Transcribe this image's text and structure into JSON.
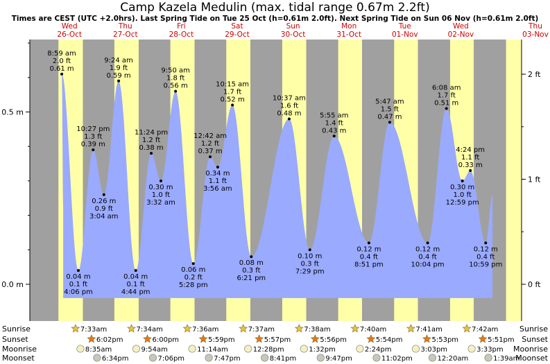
{
  "title": "Camp Kazela Medulin (max. tidal range 0.67m 2.2ft)",
  "subtitle": "Times are CEST (UTC +2.0hrs). Last Spring Tide on Tue 25 Oct (h=0.61m 2.0ft). Next Spring Tide on Sun 06 Nov (h=0.61m 2.0ft)",
  "colors": {
    "day": "#ffffa8",
    "night": "#a0a0a0",
    "tide": "#9aaaff",
    "day_label": "#cc0000"
  },
  "chart_data": {
    "type": "area",
    "title": "Camp Kazela Medulin (max. tidal range 0.67m 2.2ft)",
    "y_left_ticks": [
      {
        "value": 0.0,
        "label": "0.0 m"
      },
      {
        "value": 0.5,
        "label": "0.5 m"
      }
    ],
    "y_right_ticks": [
      {
        "value": 0.0,
        "label": "0 ft"
      },
      {
        "value": 0.3048,
        "label": "1 ft"
      },
      {
        "value": 0.6096,
        "label": "2 ft"
      }
    ],
    "ylim": [
      -0.06,
      0.75
    ],
    "days": [
      {
        "dow": "Wed",
        "date": "26-Oct",
        "sunrise": "7:33am",
        "sunset": "6:02pm",
        "moonrise": "8:35am",
        "moonset": "6:34pm"
      },
      {
        "dow": "Thu",
        "date": "27-Oct",
        "sunrise": "7:34am",
        "sunset": "6:00pm",
        "moonrise": "9:54am",
        "moonset": "7:06pm"
      },
      {
        "dow": "Fri",
        "date": "28-Oct",
        "sunrise": "7:36am",
        "sunset": "5:59pm",
        "moonrise": "11:14am",
        "moonset": "7:47pm"
      },
      {
        "dow": "Sat",
        "date": "29-Oct",
        "sunrise": "7:37am",
        "sunset": "5:57pm",
        "moonrise": "12:28pm",
        "moonset": "8:41pm"
      },
      {
        "dow": "Sun",
        "date": "30-Oct",
        "sunrise": "7:38am",
        "sunset": "5:56pm",
        "moonrise": "1:32pm",
        "moonset": "9:47pm"
      },
      {
        "dow": "Mon",
        "date": "31-Oct",
        "sunrise": "7:40am",
        "sunset": "5:54pm",
        "moonrise": "2:24pm",
        "moonset": "11:02pm"
      },
      {
        "dow": "Tue",
        "date": "01-Nov",
        "sunrise": "7:41am",
        "sunset": "5:53pm",
        "moonrise": "3:03pm",
        "moonset": "12:20am"
      },
      {
        "dow": "Wed",
        "date": "02-Nov",
        "sunrise": "7:42am",
        "sunset": "5:51pm",
        "moonrise": "3:33pm",
        "moonset": "1:39am"
      },
      {
        "dow": "Thu",
        "date": "03-Nov"
      }
    ],
    "tides": [
      {
        "day": 0,
        "time": "8:59 am",
        "ft": "2.0 ft",
        "m": "0.61 m",
        "h": 0.61,
        "type": "high"
      },
      {
        "day": 0,
        "time": "4:06 pm",
        "ft": "0.1 ft",
        "m": "0.04 m",
        "h": 0.04,
        "type": "low"
      },
      {
        "day": 0,
        "time": "10:27 pm",
        "ft": "1.3 ft",
        "m": "0.39 m",
        "h": 0.39,
        "type": "high"
      },
      {
        "day": 1,
        "time": "3:04 am",
        "ft": "0.9 ft",
        "m": "0.26 m",
        "h": 0.26,
        "type": "low"
      },
      {
        "day": 1,
        "time": "9:24 am",
        "ft": "1.9 ft",
        "m": "0.59 m",
        "h": 0.59,
        "type": "high"
      },
      {
        "day": 1,
        "time": "4:44 pm",
        "ft": "0.1 ft",
        "m": "0.04 m",
        "h": 0.04,
        "type": "low"
      },
      {
        "day": 1,
        "time": "11:24 pm",
        "ft": "1.2 ft",
        "m": "0.38 m",
        "h": 0.38,
        "type": "high"
      },
      {
        "day": 2,
        "time": "3:32 am",
        "ft": "1.0 ft",
        "m": "0.30 m",
        "h": 0.3,
        "type": "low"
      },
      {
        "day": 2,
        "time": "9:50 am",
        "ft": "1.8 ft",
        "m": "0.56 m",
        "h": 0.56,
        "type": "high"
      },
      {
        "day": 2,
        "time": "5:28 pm",
        "ft": "0.2 ft",
        "m": "0.06 m",
        "h": 0.06,
        "type": "low"
      },
      {
        "day": 3,
        "time": "12:42 am",
        "ft": "1.2 ft",
        "m": "0.37 m",
        "h": 0.37,
        "type": "high"
      },
      {
        "day": 3,
        "time": "3:56 am",
        "ft": "1.1 ft",
        "m": "0.34 m",
        "h": 0.34,
        "type": "low"
      },
      {
        "day": 3,
        "time": "10:15 am",
        "ft": "1.7 ft",
        "m": "0.52 m",
        "h": 0.52,
        "type": "high"
      },
      {
        "day": 3,
        "time": "6:21 pm",
        "ft": "0.3 ft",
        "m": "0.08 m",
        "h": 0.08,
        "type": "low"
      },
      {
        "day": 4,
        "time": "10:37 am",
        "ft": "1.6 ft",
        "m": "0.48 m",
        "h": 0.48,
        "type": "high"
      },
      {
        "day": 4,
        "time": "7:29 pm",
        "ft": "0.3 ft",
        "m": "0.10 m",
        "h": 0.1,
        "type": "low"
      },
      {
        "day": 5,
        "time": "5:55 am",
        "ft": "1.4 ft",
        "m": "0.43 m",
        "h": 0.43,
        "type": "high"
      },
      {
        "day": 5,
        "time": "8:51 pm",
        "ft": "0.4 ft",
        "m": "0.12 m",
        "h": 0.12,
        "type": "low"
      },
      {
        "day": 6,
        "time": "5:47 am",
        "ft": "1.5 ft",
        "m": "0.47 m",
        "h": 0.47,
        "type": "high"
      },
      {
        "day": 6,
        "time": "10:04 pm",
        "ft": "0.4 ft",
        "m": "0.12 m",
        "h": 0.12,
        "type": "low"
      },
      {
        "day": 7,
        "time": "6:08 am",
        "ft": "1.7 ft",
        "m": "0.51 m",
        "h": 0.51,
        "type": "high"
      },
      {
        "day": 7,
        "time": "12:59 pm",
        "ft": "1.0 ft",
        "m": "0.30 m",
        "h": 0.3,
        "type": "low"
      },
      {
        "day": 7,
        "time": "4:24 pm",
        "ft": "1.1 ft",
        "m": "0.33 m",
        "h": 0.33,
        "type": "high"
      },
      {
        "day": 7,
        "time": "10:59 pm",
        "ft": "0.4 ft",
        "m": "0.12 m",
        "h": 0.12,
        "type": "low"
      }
    ]
  },
  "rows": {
    "sunrise": "Sunrise",
    "sunset": "Sunset",
    "moonrise": "Moonrise",
    "moonset": "Moonset"
  }
}
